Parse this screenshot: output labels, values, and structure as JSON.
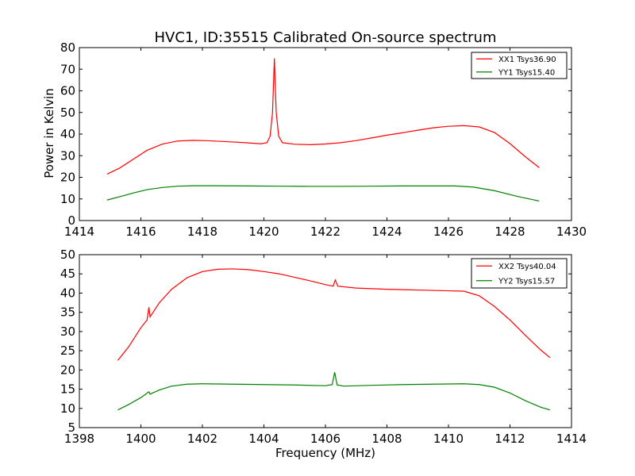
{
  "chart_data": [
    {
      "type": "line",
      "title": "HVC1, ID:35515 Calibrated On-source spectrum",
      "xlabel": "",
      "ylabel": "Power in Kelvin",
      "xlim": [
        1414,
        1430
      ],
      "ylim": [
        0,
        80
      ],
      "xticks": [
        1414,
        1416,
        1418,
        1420,
        1422,
        1424,
        1426,
        1428,
        1430
      ],
      "yticks": [
        0,
        10,
        20,
        30,
        40,
        50,
        60,
        70,
        80
      ],
      "grid": false,
      "legend_position": "top-right",
      "series": [
        {
          "name": "XX1 Tsys36.90",
          "color": "#ff0000",
          "points": [
            [
              1414.9,
              21.5
            ],
            [
              1415.3,
              24.2
            ],
            [
              1415.8,
              28.8
            ],
            [
              1416.2,
              32.5
            ],
            [
              1416.7,
              35.4
            ],
            [
              1417.2,
              36.8
            ],
            [
              1417.7,
              37.1
            ],
            [
              1418.2,
              36.9
            ],
            [
              1418.8,
              36.5
            ],
            [
              1419.4,
              36.0
            ],
            [
              1419.9,
              35.5
            ],
            [
              1420.1,
              36.0
            ],
            [
              1420.2,
              39.0
            ],
            [
              1420.28,
              50.0
            ],
            [
              1420.34,
              75.0
            ],
            [
              1420.4,
              50.0
            ],
            [
              1420.48,
              39.0
            ],
            [
              1420.6,
              36.0
            ],
            [
              1421.0,
              35.3
            ],
            [
              1421.5,
              35.1
            ],
            [
              1422.0,
              35.4
            ],
            [
              1422.5,
              36.0
            ],
            [
              1423.0,
              37.0
            ],
            [
              1423.5,
              38.2
            ],
            [
              1424.0,
              39.5
            ],
            [
              1424.5,
              40.6
            ],
            [
              1425.0,
              41.8
            ],
            [
              1425.5,
              42.9
            ],
            [
              1426.0,
              43.6
            ],
            [
              1426.5,
              43.9
            ],
            [
              1427.0,
              43.3
            ],
            [
              1427.5,
              40.7
            ],
            [
              1428.0,
              35.6
            ],
            [
              1428.5,
              29.5
            ],
            [
              1428.95,
              24.5
            ]
          ]
        },
        {
          "name": "YY1 Tsys15.40",
          "color": "#008000",
          "points": [
            [
              1414.9,
              9.5
            ],
            [
              1415.3,
              11.0
            ],
            [
              1415.8,
              12.9
            ],
            [
              1416.2,
              14.3
            ],
            [
              1416.7,
              15.3
            ],
            [
              1417.2,
              15.9
            ],
            [
              1417.7,
              16.1
            ],
            [
              1418.5,
              16.1
            ],
            [
              1419.5,
              16.0
            ],
            [
              1420.5,
              15.9
            ],
            [
              1421.5,
              15.8
            ],
            [
              1422.5,
              15.8
            ],
            [
              1423.5,
              15.9
            ],
            [
              1424.5,
              16.0
            ],
            [
              1425.5,
              16.0
            ],
            [
              1426.2,
              16.0
            ],
            [
              1426.8,
              15.5
            ],
            [
              1427.5,
              13.8
            ],
            [
              1428.2,
              11.3
            ],
            [
              1428.95,
              9.0
            ]
          ]
        }
      ]
    },
    {
      "type": "line",
      "title": "",
      "xlabel": "Frequency (MHz)",
      "ylabel": "",
      "xlim": [
        1398,
        1414
      ],
      "ylim": [
        5,
        50
      ],
      "xticks": [
        1398,
        1400,
        1402,
        1404,
        1406,
        1408,
        1410,
        1412,
        1414
      ],
      "yticks": [
        5,
        10,
        15,
        20,
        25,
        30,
        35,
        40,
        45,
        50
      ],
      "grid": false,
      "legend_position": "top-right",
      "series": [
        {
          "name": "XX2 Tsys40.04",
          "color": "#ff0000",
          "points": [
            [
              1399.25,
              22.5
            ],
            [
              1399.6,
              26.0
            ],
            [
              1400.0,
              31.0
            ],
            [
              1400.2,
              33.0
            ],
            [
              1400.26,
              36.3
            ],
            [
              1400.3,
              33.8
            ],
            [
              1400.6,
              37.5
            ],
            [
              1401.0,
              41.0
            ],
            [
              1401.5,
              44.0
            ],
            [
              1402.0,
              45.6
            ],
            [
              1402.5,
              46.2
            ],
            [
              1403.0,
              46.3
            ],
            [
              1403.5,
              46.1
            ],
            [
              1404.0,
              45.6
            ],
            [
              1404.5,
              45.0
            ],
            [
              1405.0,
              44.1
            ],
            [
              1405.5,
              43.2
            ],
            [
              1406.0,
              42.2
            ],
            [
              1406.25,
              41.8
            ],
            [
              1406.32,
              43.4
            ],
            [
              1406.4,
              41.8
            ],
            [
              1407.0,
              41.3
            ],
            [
              1408.0,
              41.0
            ],
            [
              1409.0,
              40.8
            ],
            [
              1410.0,
              40.6
            ],
            [
              1410.5,
              40.5
            ],
            [
              1411.0,
              39.3
            ],
            [
              1411.5,
              36.5
            ],
            [
              1412.0,
              33.0
            ],
            [
              1412.5,
              29.0
            ],
            [
              1413.0,
              25.2
            ],
            [
              1413.3,
              23.2
            ]
          ]
        },
        {
          "name": "YY2 Tsys15.57",
          "color": "#008000",
          "points": [
            [
              1399.25,
              9.6
            ],
            [
              1399.6,
              11.0
            ],
            [
              1400.0,
              12.8
            ],
            [
              1400.26,
              14.3
            ],
            [
              1400.3,
              13.7
            ],
            [
              1400.6,
              14.8
            ],
            [
              1401.0,
              15.8
            ],
            [
              1401.5,
              16.3
            ],
            [
              1402.0,
              16.4
            ],
            [
              1403.0,
              16.3
            ],
            [
              1404.0,
              16.2
            ],
            [
              1405.0,
              16.1
            ],
            [
              1406.0,
              15.9
            ],
            [
              1406.22,
              16.2
            ],
            [
              1406.3,
              19.4
            ],
            [
              1406.38,
              16.1
            ],
            [
              1406.6,
              15.8
            ],
            [
              1407.5,
              16.0
            ],
            [
              1408.5,
              16.2
            ],
            [
              1409.5,
              16.3
            ],
            [
              1410.5,
              16.4
            ],
            [
              1411.0,
              16.2
            ],
            [
              1411.5,
              15.5
            ],
            [
              1412.0,
              14.0
            ],
            [
              1412.5,
              12.0
            ],
            [
              1413.0,
              10.3
            ],
            [
              1413.3,
              9.6
            ]
          ]
        }
      ]
    }
  ]
}
